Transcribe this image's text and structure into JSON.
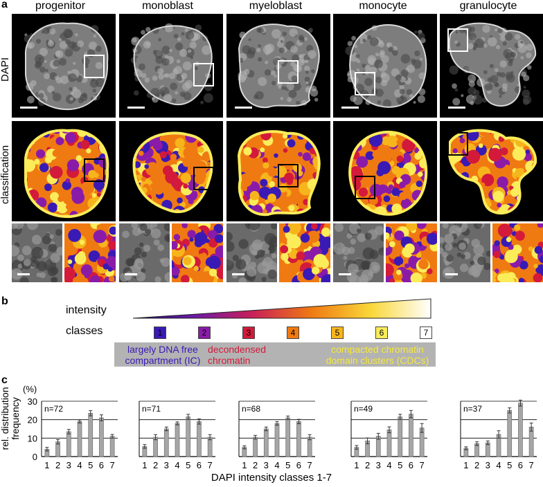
{
  "panel_a": {
    "letter": "a",
    "columns": [
      "progenitor",
      "monoblast",
      "myeloblast",
      "monocyte",
      "granulocyte"
    ],
    "row_labels": [
      "DAPI",
      "classification"
    ]
  },
  "panel_b": {
    "letter": "b",
    "intensity_label": "intensity",
    "classes_label": "classes",
    "classes": [
      {
        "label": "1",
        "color": "#3a1ab5"
      },
      {
        "label": "2",
        "color": "#8a1ba8"
      },
      {
        "label": "3",
        "color": "#d31a3a"
      },
      {
        "label": "4",
        "color": "#f07a12"
      },
      {
        "label": "5",
        "color": "#f7b51c"
      },
      {
        "label": "6",
        "color": "#fbec5a"
      },
      {
        "label": "7",
        "color": "#ffffff"
      }
    ],
    "legend": [
      {
        "line1": "largely DNA free",
        "line2": "compartment (IC)",
        "color": "#3a1ab5"
      },
      {
        "line1": "decondensed",
        "line2": "chromatin",
        "color": "#d31a3a"
      },
      {
        "line1": "compacted chromatin",
        "line2": "domain clusters (CDCs)",
        "color": "#f7e93a"
      }
    ]
  },
  "panel_c": {
    "letter": "c",
    "unit": "(%)",
    "ylabel_line1": "rel. distribution",
    "ylabel_line2": "frequency",
    "xlabel": "DAPI intensity classes 1-7",
    "colors": {
      "bar": "#a6a6a6",
      "bar_stroke": "#6e6e6e",
      "error": "#333333"
    }
  },
  "chart_data": [
    {
      "type": "bar",
      "categories": [
        "1",
        "2",
        "3",
        "4",
        "5",
        "6",
        "7"
      ],
      "ylim": [
        0,
        30
      ],
      "yticks": [
        "0",
        "10",
        "20",
        "30"
      ],
      "grid": true,
      "annotation": "n=72",
      "values": [
        4,
        8,
        13.5,
        19,
        23.5,
        21,
        11
      ],
      "errors": [
        1,
        1.2,
        1.2,
        0.8,
        1.4,
        1.6,
        1
      ]
    },
    {
      "type": "bar",
      "categories": [
        "1",
        "2",
        "3",
        "4",
        "5",
        "6",
        "7"
      ],
      "ylim": [
        0,
        30
      ],
      "yticks": [
        "0",
        "10",
        "20",
        "30"
      ],
      "grid": true,
      "annotation": "n=71",
      "values": [
        5.5,
        10.5,
        15,
        18,
        21.5,
        19,
        10.5
      ],
      "errors": [
        1,
        1.4,
        1,
        0.8,
        1.4,
        1.4,
        1.4
      ]
    },
    {
      "type": "bar",
      "categories": [
        "1",
        "2",
        "3",
        "4",
        "5",
        "6",
        "7"
      ],
      "ylim": [
        0,
        30
      ],
      "yticks": [
        "0",
        "10",
        "20",
        "30"
      ],
      "grid": true,
      "annotation": "n=68",
      "values": [
        5,
        10.5,
        15,
        18,
        21,
        19,
        10.5
      ],
      "errors": [
        0.8,
        1,
        1,
        1,
        1,
        1.2,
        1.4
      ]
    },
    {
      "type": "bar",
      "categories": [
        "1",
        "2",
        "3",
        "4",
        "5",
        "6",
        "7"
      ],
      "ylim": [
        0,
        30
      ],
      "yticks": [
        "0",
        "10",
        "20",
        "30"
      ],
      "grid": true,
      "annotation": "n=49",
      "values": [
        5,
        8.5,
        11,
        14.5,
        21.5,
        23,
        15.5
      ],
      "errors": [
        1,
        1.6,
        1.6,
        1.6,
        1.4,
        2,
        2.4
      ]
    },
    {
      "type": "bar",
      "categories": [
        "1",
        "2",
        "3",
        "4",
        "5",
        "6",
        "7"
      ],
      "ylim": [
        0,
        30
      ],
      "yticks": [
        "0",
        "10",
        "20",
        "30"
      ],
      "grid": true,
      "annotation": "n=37",
      "values": [
        4.5,
        7,
        7.5,
        12,
        25,
        29,
        16
      ],
      "errors": [
        0.8,
        1,
        1,
        2,
        1.4,
        1.6,
        2.2
      ]
    }
  ]
}
